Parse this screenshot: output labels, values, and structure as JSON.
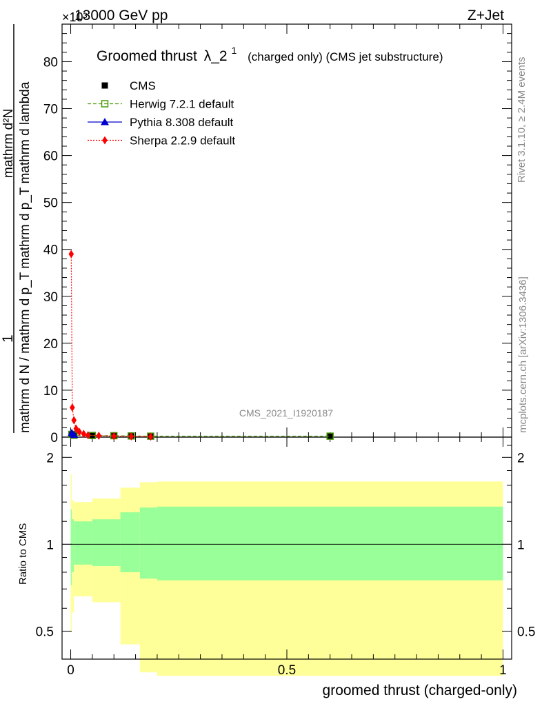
{
  "header": {
    "left_label": "13000 GeV pp",
    "exponent_label": "×10³",
    "right_label": "Z+Jet"
  },
  "side_labels": {
    "rivet": "Rivet 3.1.10, ≥ 2.4M events",
    "mcplots": "mcplots.cern.ch [arXiv:1306.3436]"
  },
  "watermark": "CMS_2021_I1920187",
  "colors": {
    "cms": "#000000",
    "herwig": "#4a9a0a",
    "pythia": "#0000cc",
    "sherpa": "#ff0000",
    "band_inner": "#99ff99",
    "band_outer": "#ffff99"
  },
  "legend_entries": [
    {
      "key": "cms",
      "label": "CMS"
    },
    {
      "key": "herwig",
      "label": "Herwig 7.2.1 default"
    },
    {
      "key": "pythia",
      "label": "Pythia 8.308 default"
    },
    {
      "key": "sherpa",
      "label": "Sherpa 2.2.9 default"
    }
  ],
  "chart_data": [
    {
      "type": "line",
      "panel": "main",
      "title": "Groomed thrust λ_2¹",
      "title_main": "Groomed thrust",
      "title_lambda": "λ_2",
      "title_sup": "1",
      "title_suffix": "(charged only) (CMS jet substructure)",
      "ylabel_num": "1",
      "ylabel_top": "mathrm d²N",
      "ylabel_bottom": "mathrm d N / mathrm d p_T mathrm d p_T mathrm d lambda",
      "xlim": [
        -0.02,
        1.02
      ],
      "ylim": [
        0,
        88
      ],
      "yscale_note": "×10³",
      "yticks": [
        0,
        10,
        20,
        30,
        40,
        50,
        60,
        70,
        80
      ],
      "ytick_labels": [
        "0",
        "10",
        "20",
        "30",
        "40",
        "50",
        "60",
        "70",
        "80"
      ],
      "series": [
        {
          "name": "CMS",
          "key": "cms",
          "marker": "square",
          "x": [
            0.0025,
            0.0075,
            0.05,
            0.1,
            0.14,
            0.185,
            0.6
          ],
          "y": [
            0.6,
            0.4,
            0.35,
            0.3,
            0.25,
            0.2,
            0.2
          ]
        },
        {
          "name": "Herwig 7.2.1 default",
          "key": "herwig",
          "marker": "open-square",
          "x": [
            0.0025,
            0.0075,
            0.05,
            0.1,
            0.14,
            0.185,
            0.6
          ],
          "y": [
            0.6,
            0.4,
            0.35,
            0.3,
            0.25,
            0.2,
            0.2
          ]
        },
        {
          "name": "Pythia 8.308 default",
          "key": "pythia",
          "marker": "triangle",
          "x": [
            0.0025,
            0.0075
          ],
          "y": [
            0.9,
            0.5
          ]
        },
        {
          "name": "Sherpa 2.2.9 default",
          "key": "sherpa",
          "marker": "diamond",
          "x": [
            0.0012,
            0.0037,
            0.0075,
            0.0125,
            0.02,
            0.03,
            0.04,
            0.065,
            0.1,
            0.14,
            0.185
          ],
          "y": [
            39.0,
            6.3,
            3.6,
            1.8,
            1.1,
            0.7,
            0.4,
            0.3,
            0.2,
            0.15,
            0.1
          ]
        }
      ]
    },
    {
      "type": "area",
      "panel": "ratio",
      "ylabel": "Ratio to CMS",
      "xlabel": "groomed thrust (charged-only)",
      "xlim": [
        -0.02,
        1.02
      ],
      "ylim": [
        0.4,
        2.35
      ],
      "yscale": "log",
      "yticks": [
        0.5,
        1,
        2
      ],
      "ytick_labels": [
        "0.5",
        "1",
        "2"
      ],
      "xticks": [
        0,
        0.5,
        1
      ],
      "xtick_labels": [
        "0",
        "0.5",
        "1"
      ],
      "reference_line": 1,
      "bins": [
        {
          "x0": 0.0,
          "x1": 0.0025,
          "inner": [
            0.72,
            1.32
          ],
          "outer": [
            0.5,
            1.75
          ]
        },
        {
          "x0": 0.0025,
          "x1": 0.0075,
          "inner": [
            0.8,
            1.22
          ],
          "outer": [
            0.58,
            1.42
          ]
        },
        {
          "x0": 0.0075,
          "x1": 0.05,
          "inner": [
            0.85,
            1.2
          ],
          "outer": [
            0.66,
            1.4
          ]
        },
        {
          "x0": 0.05,
          "x1": 0.115,
          "inner": [
            0.84,
            1.22
          ],
          "outer": [
            0.63,
            1.44
          ]
        },
        {
          "x0": 0.115,
          "x1": 0.16,
          "inner": [
            0.8,
            1.29
          ],
          "outer": [
            0.45,
            1.57
          ]
        },
        {
          "x0": 0.16,
          "x1": 0.2,
          "inner": [
            0.76,
            1.34
          ],
          "outer": [
            0.36,
            1.64
          ]
        },
        {
          "x0": 0.2,
          "x1": 1.0,
          "inner": [
            0.75,
            1.35
          ],
          "outer": [
            0.35,
            1.65
          ]
        }
      ]
    }
  ]
}
